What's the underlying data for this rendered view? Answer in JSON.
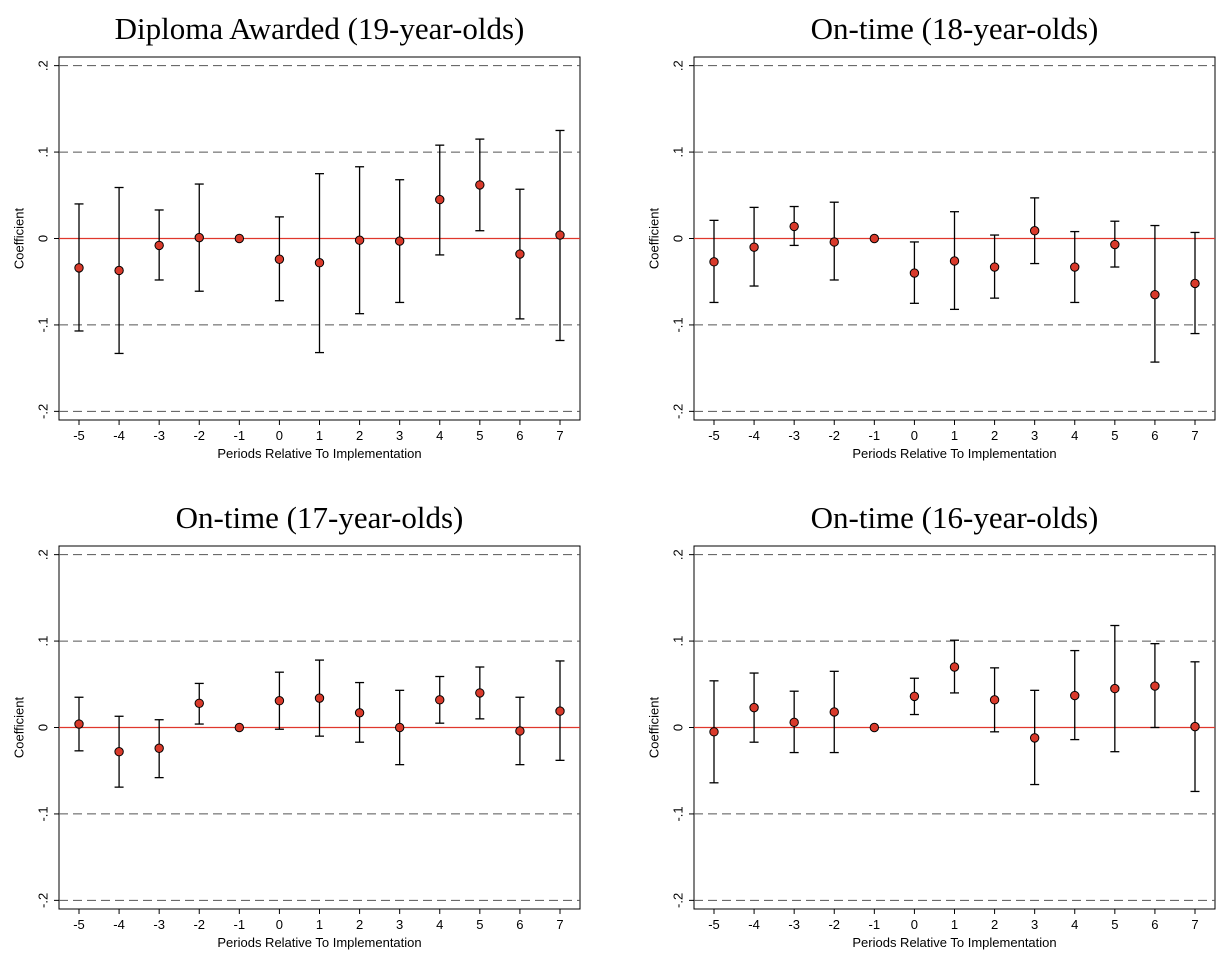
{
  "colors": {
    "zero_line": "#e0372c",
    "point_fill": "#d93a2b",
    "point_stroke": "#000000",
    "error_bar": "#000000",
    "grid_dashed": "#555555",
    "frame": "#000000"
  },
  "chart_data": [
    {
      "type": "scatter",
      "title": "Diploma Awarded (19-year-olds)",
      "xlabel": "Periods Relative To Implementation",
      "ylabel": "Coefficient",
      "xticks": [
        "-5",
        "-4",
        "-3",
        "-2",
        "-1",
        "0",
        "1",
        "2",
        "3",
        "4",
        "5",
        "6",
        "7"
      ],
      "yticks": [
        {
          "value": 0.2,
          "label": ".2"
        },
        {
          "value": 0.1,
          "label": ".1"
        },
        {
          "value": 0,
          "label": "0"
        },
        {
          "value": -0.1,
          "label": "-.1"
        },
        {
          "value": -0.2,
          "label": "-.2"
        }
      ],
      "ylim": [
        -0.21,
        0.21
      ],
      "grid": "dashed at y = -.2, -.1, .1, .2",
      "reference_line": 0,
      "x": [
        -5,
        -4,
        -3,
        -2,
        -1,
        0,
        1,
        2,
        3,
        4,
        5,
        6,
        7
      ],
      "y": [
        -0.034,
        -0.037,
        -0.008,
        0.001,
        0,
        -0.024,
        -0.028,
        -0.002,
        -0.003,
        0.045,
        0.062,
        -0.018,
        0.004
      ],
      "ci_low": [
        -0.107,
        -0.133,
        -0.048,
        -0.061,
        0,
        -0.072,
        -0.132,
        -0.087,
        -0.074,
        -0.019,
        0.009,
        -0.093,
        -0.118
      ],
      "ci_high": [
        0.04,
        0.059,
        0.033,
        0.063,
        0,
        0.025,
        0.075,
        0.083,
        0.068,
        0.108,
        0.115,
        0.057,
        0.125
      ]
    },
    {
      "type": "scatter",
      "title": "On-time (18-year-olds)",
      "xlabel": "Periods Relative To Implementation",
      "ylabel": "Coefficient",
      "xticks": [
        "-5",
        "-4",
        "-3",
        "-2",
        "-1",
        "0",
        "1",
        "2",
        "3",
        "4",
        "5",
        "6",
        "7"
      ],
      "yticks": [
        {
          "value": 0.2,
          "label": ".2"
        },
        {
          "value": 0.1,
          "label": ".1"
        },
        {
          "value": 0,
          "label": "0"
        },
        {
          "value": -0.1,
          "label": "-.1"
        },
        {
          "value": -0.2,
          "label": "-.2"
        }
      ],
      "ylim": [
        -0.21,
        0.21
      ],
      "grid": "dashed at y = -.2, -.1, .1, .2",
      "reference_line": 0,
      "x": [
        -5,
        -4,
        -3,
        -2,
        -1,
        0,
        1,
        2,
        3,
        4,
        5,
        6,
        7
      ],
      "y": [
        -0.027,
        -0.01,
        0.014,
        -0.004,
        0,
        -0.04,
        -0.026,
        -0.033,
        0.009,
        -0.033,
        -0.007,
        -0.065,
        -0.052
      ],
      "ci_low": [
        -0.074,
        -0.055,
        -0.008,
        -0.048,
        0,
        -0.075,
        -0.082,
        -0.069,
        -0.029,
        -0.074,
        -0.033,
        -0.143,
        -0.11
      ],
      "ci_high": [
        0.021,
        0.036,
        0.037,
        0.042,
        0,
        -0.004,
        0.031,
        0.004,
        0.047,
        0.008,
        0.02,
        0.015,
        0.007
      ]
    },
    {
      "type": "scatter",
      "title": "On-time (17-year-olds)",
      "xlabel": "Periods Relative To Implementation",
      "ylabel": "Coefficient",
      "xticks": [
        "-5",
        "-4",
        "-3",
        "-2",
        "-1",
        "0",
        "1",
        "2",
        "3",
        "4",
        "5",
        "6",
        "7"
      ],
      "yticks": [
        {
          "value": 0.2,
          "label": ".2"
        },
        {
          "value": 0.1,
          "label": ".1"
        },
        {
          "value": 0,
          "label": "0"
        },
        {
          "value": -0.1,
          "label": "-.1"
        },
        {
          "value": -0.2,
          "label": "-.2"
        }
      ],
      "ylim": [
        -0.21,
        0.21
      ],
      "grid": "dashed at y = -.2, -.1, .1, .2",
      "reference_line": 0,
      "x": [
        -5,
        -4,
        -3,
        -2,
        -1,
        0,
        1,
        2,
        3,
        4,
        5,
        6,
        7
      ],
      "y": [
        0.004,
        -0.028,
        -0.024,
        0.028,
        0,
        0.031,
        0.034,
        0.017,
        0,
        0.032,
        0.04,
        -0.004,
        0.019
      ],
      "ci_low": [
        -0.027,
        -0.069,
        -0.058,
        0.004,
        0,
        -0.002,
        -0.01,
        -0.017,
        -0.043,
        0.005,
        0.01,
        -0.043,
        -0.038
      ],
      "ci_high": [
        0.035,
        0.013,
        0.009,
        0.051,
        0,
        0.064,
        0.078,
        0.052,
        0.043,
        0.059,
        0.07,
        0.035,
        0.077
      ]
    },
    {
      "type": "scatter",
      "title": "On-time (16-year-olds)",
      "xlabel": "Periods Relative To Implementation",
      "ylabel": "Coefficient",
      "xticks": [
        "-5",
        "-4",
        "-3",
        "-2",
        "-1",
        "0",
        "1",
        "2",
        "3",
        "4",
        "5",
        "6",
        "7"
      ],
      "yticks": [
        {
          "value": 0.2,
          "label": ".2"
        },
        {
          "value": 0.1,
          "label": ".1"
        },
        {
          "value": 0,
          "label": "0"
        },
        {
          "value": -0.1,
          "label": "-.1"
        },
        {
          "value": -0.2,
          "label": "-.2"
        }
      ],
      "ylim": [
        -0.21,
        0.21
      ],
      "grid": "dashed at y = -.2, -.1, .1, .2",
      "reference_line": 0,
      "x": [
        -5,
        -4,
        -3,
        -2,
        -1,
        0,
        1,
        2,
        3,
        4,
        5,
        6,
        7
      ],
      "y": [
        -0.005,
        0.023,
        0.006,
        0.018,
        0,
        0.036,
        0.07,
        0.032,
        -0.012,
        0.037,
        0.045,
        0.048,
        0.001
      ],
      "ci_low": [
        -0.064,
        -0.017,
        -0.029,
        -0.029,
        0,
        0.015,
        0.04,
        -0.005,
        -0.066,
        -0.014,
        -0.028,
        0,
        -0.074
      ],
      "ci_high": [
        0.054,
        0.063,
        0.042,
        0.065,
        0,
        0.057,
        0.101,
        0.069,
        0.043,
        0.089,
        0.118,
        0.097,
        0.076
      ]
    }
  ]
}
